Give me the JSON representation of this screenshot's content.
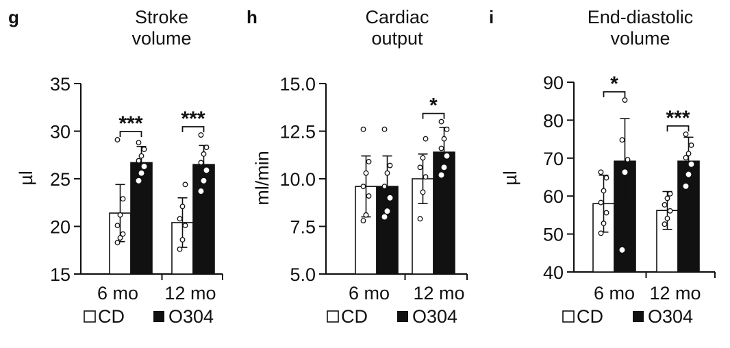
{
  "legend": {
    "cd_label": "CD",
    "o304_label": "O304"
  },
  "chart_data": [
    {
      "panel": "g",
      "type": "bar",
      "title": [
        "Stroke",
        "volume"
      ],
      "ylabel": "µl",
      "ylim": [
        15,
        35
      ],
      "yticks": [
        "15",
        "20",
        "25",
        "30",
        "35"
      ],
      "categories": [
        "6 mo",
        "12 mo"
      ],
      "series": [
        {
          "name": "CD",
          "values": [
            21.4,
            20.4
          ],
          "sd": [
            3.0,
            2.6
          ],
          "points": [
            [
              18.3,
              18.8,
              19.2,
              20.1,
              21.2,
              22.9,
              29.1
            ],
            [
              17.6,
              18.6,
              20.1,
              20.8,
              22.1,
              24.4
            ]
          ]
        },
        {
          "name": "O304",
          "values": [
            26.7,
            26.5
          ],
          "sd": [
            1.7,
            2.0
          ],
          "points": [
            [
              24.8,
              25.6,
              26.3,
              26.9,
              27.4,
              28.1,
              28.8
            ],
            [
              23.7,
              24.8,
              25.9,
              26.7,
              27.6,
              28.3,
              29.6
            ]
          ]
        }
      ],
      "significance": [
        "***",
        "***"
      ]
    },
    {
      "panel": "h",
      "type": "bar",
      "title": [
        "Cardiac",
        "output"
      ],
      "ylabel": "ml/min",
      "ylim": [
        5,
        15
      ],
      "yticks": [
        "5.0",
        "7.5",
        "10.0",
        "12.5",
        "15.0"
      ],
      "categories": [
        "6 mo",
        "12 mo"
      ],
      "series": [
        {
          "name": "CD",
          "values": [
            9.6,
            10.0
          ],
          "sd": [
            1.6,
            1.3
          ],
          "points": [
            [
              7.8,
              8.1,
              9.1,
              9.6,
              10.3,
              10.9,
              12.6
            ],
            [
              7.9,
              9.3,
              10.1,
              10.6,
              11.1,
              12.1
            ]
          ]
        },
        {
          "name": "O304",
          "values": [
            9.6,
            11.4
          ],
          "sd": [
            1.6,
            1.3
          ],
          "points": [
            [
              8.0,
              8.3,
              9.0,
              9.6,
              10.3,
              10.7,
              12.6
            ],
            [
              10.2,
              10.6,
              11.2,
              11.6,
              12.1,
              12.6,
              13.0
            ]
          ]
        }
      ],
      "significance": [
        "",
        "*"
      ]
    },
    {
      "panel": "i",
      "type": "bar",
      "title": [
        "End-diastolic",
        "volume"
      ],
      "ylabel": "µl",
      "ylim": [
        40,
        90
      ],
      "yticks": [
        "40",
        "50",
        "60",
        "70",
        "80",
        "90"
      ],
      "categories": [
        "6 mo",
        "12 mo"
      ],
      "series": [
        {
          "name": "CD",
          "values": [
            58,
            56.2
          ],
          "sd": [
            7.5,
            5.0
          ],
          "points": [
            [
              50.2,
              52.8,
              55.6,
              58.3,
              61.4,
              64.8,
              66.3
            ],
            [
              52.6,
              54.1,
              56.1,
              57.7,
              59.4,
              60.6
            ]
          ]
        },
        {
          "name": "O304",
          "values": [
            69.2,
            69.2
          ],
          "sd": [
            11.2,
            6.3
          ],
          "points": [
            [
              45.8,
              66.3,
              69.6,
              74.8,
              85.3
            ],
            [
              62.6,
              65.7,
              68.4,
              70.1,
              71.2,
              73.4,
              76.3
            ]
          ]
        }
      ],
      "significance": [
        "*",
        "***"
      ]
    }
  ]
}
